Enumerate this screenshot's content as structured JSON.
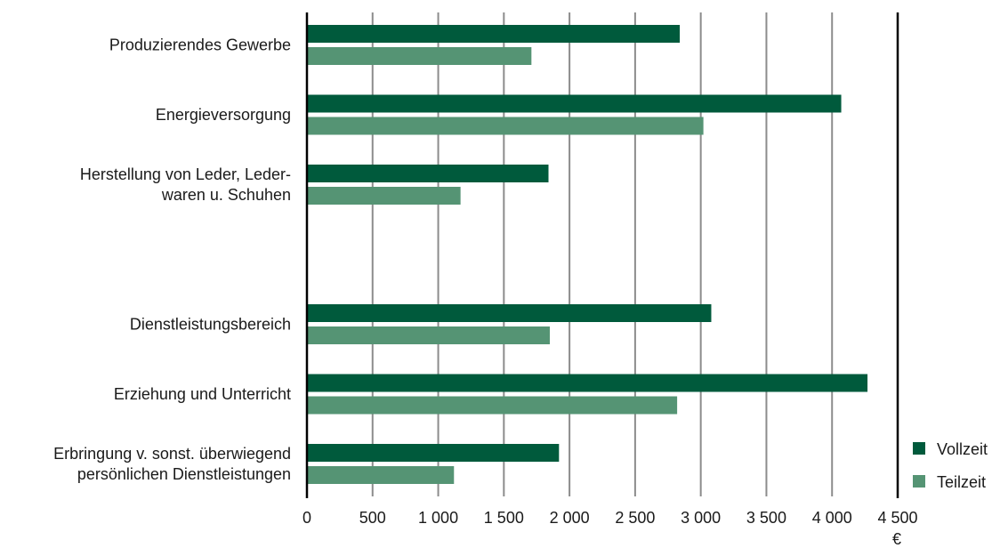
{
  "chart_data": {
    "type": "bar",
    "orientation": "horizontal",
    "categories": [
      [
        "Produzierendes Gewerbe"
      ],
      [
        "Energieversorgung"
      ],
      [
        "Herstellung von Leder, Leder-",
        "waren u. Schuhen"
      ],
      [],
      [
        "Dienstleistungsbereich"
      ],
      [
        "Erziehung und Unterricht"
      ],
      [
        "Erbringung v. sonst. überwiegend",
        "persönlichen Dienstleistungen"
      ]
    ],
    "series": [
      {
        "name": "Vollzeit",
        "color": "#005a3c",
        "values": [
          2840,
          4070,
          1840,
          null,
          3080,
          4270,
          1920
        ]
      },
      {
        "name": "Teilzeit",
        "color": "#559474",
        "values": [
          1710,
          3020,
          1170,
          null,
          1850,
          2820,
          1120
        ]
      }
    ],
    "xlim": [
      0,
      4500
    ],
    "ticks": [
      0,
      500,
      1000,
      1500,
      2000,
      2500,
      3000,
      3500,
      4000,
      4500
    ],
    "tick_labels": [
      "0",
      "500",
      "1 000",
      "1 500",
      "2 000",
      "2 500",
      "3 000",
      "3 500",
      "4 000",
      "4 500"
    ],
    "unit": "€",
    "grid": true,
    "legend_position": "bottom-right",
    "gridline_color": "#8c8c8c",
    "axis_color": "#000000"
  }
}
